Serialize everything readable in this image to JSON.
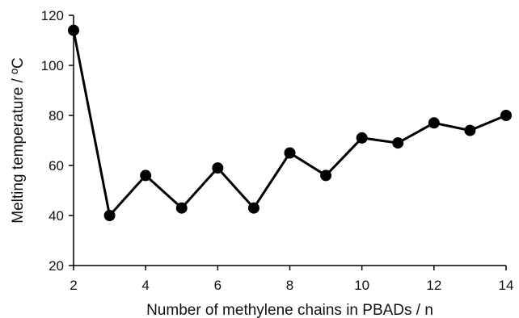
{
  "chart_data": {
    "type": "line",
    "xlabel": "Number of methylene chains in PBADs / n",
    "ylabel": "Melting temperature / ºC",
    "xlim": [
      2,
      14
    ],
    "ylim": [
      20,
      120
    ],
    "xticks": [
      2,
      4,
      6,
      8,
      10,
      12,
      14
    ],
    "yticks": [
      20,
      40,
      60,
      80,
      100,
      120
    ],
    "grid": false,
    "series": [
      {
        "x": [
          2,
          3,
          4,
          5,
          6,
          7,
          8,
          9,
          10,
          11,
          12,
          13,
          14
        ],
        "y": [
          114,
          40,
          56,
          43,
          59,
          43,
          65,
          56,
          71,
          69,
          77,
          74,
          80
        ]
      }
    ],
    "colors": {
      "line": "#000000",
      "marker": "#000000",
      "axis": "#000000"
    }
  }
}
